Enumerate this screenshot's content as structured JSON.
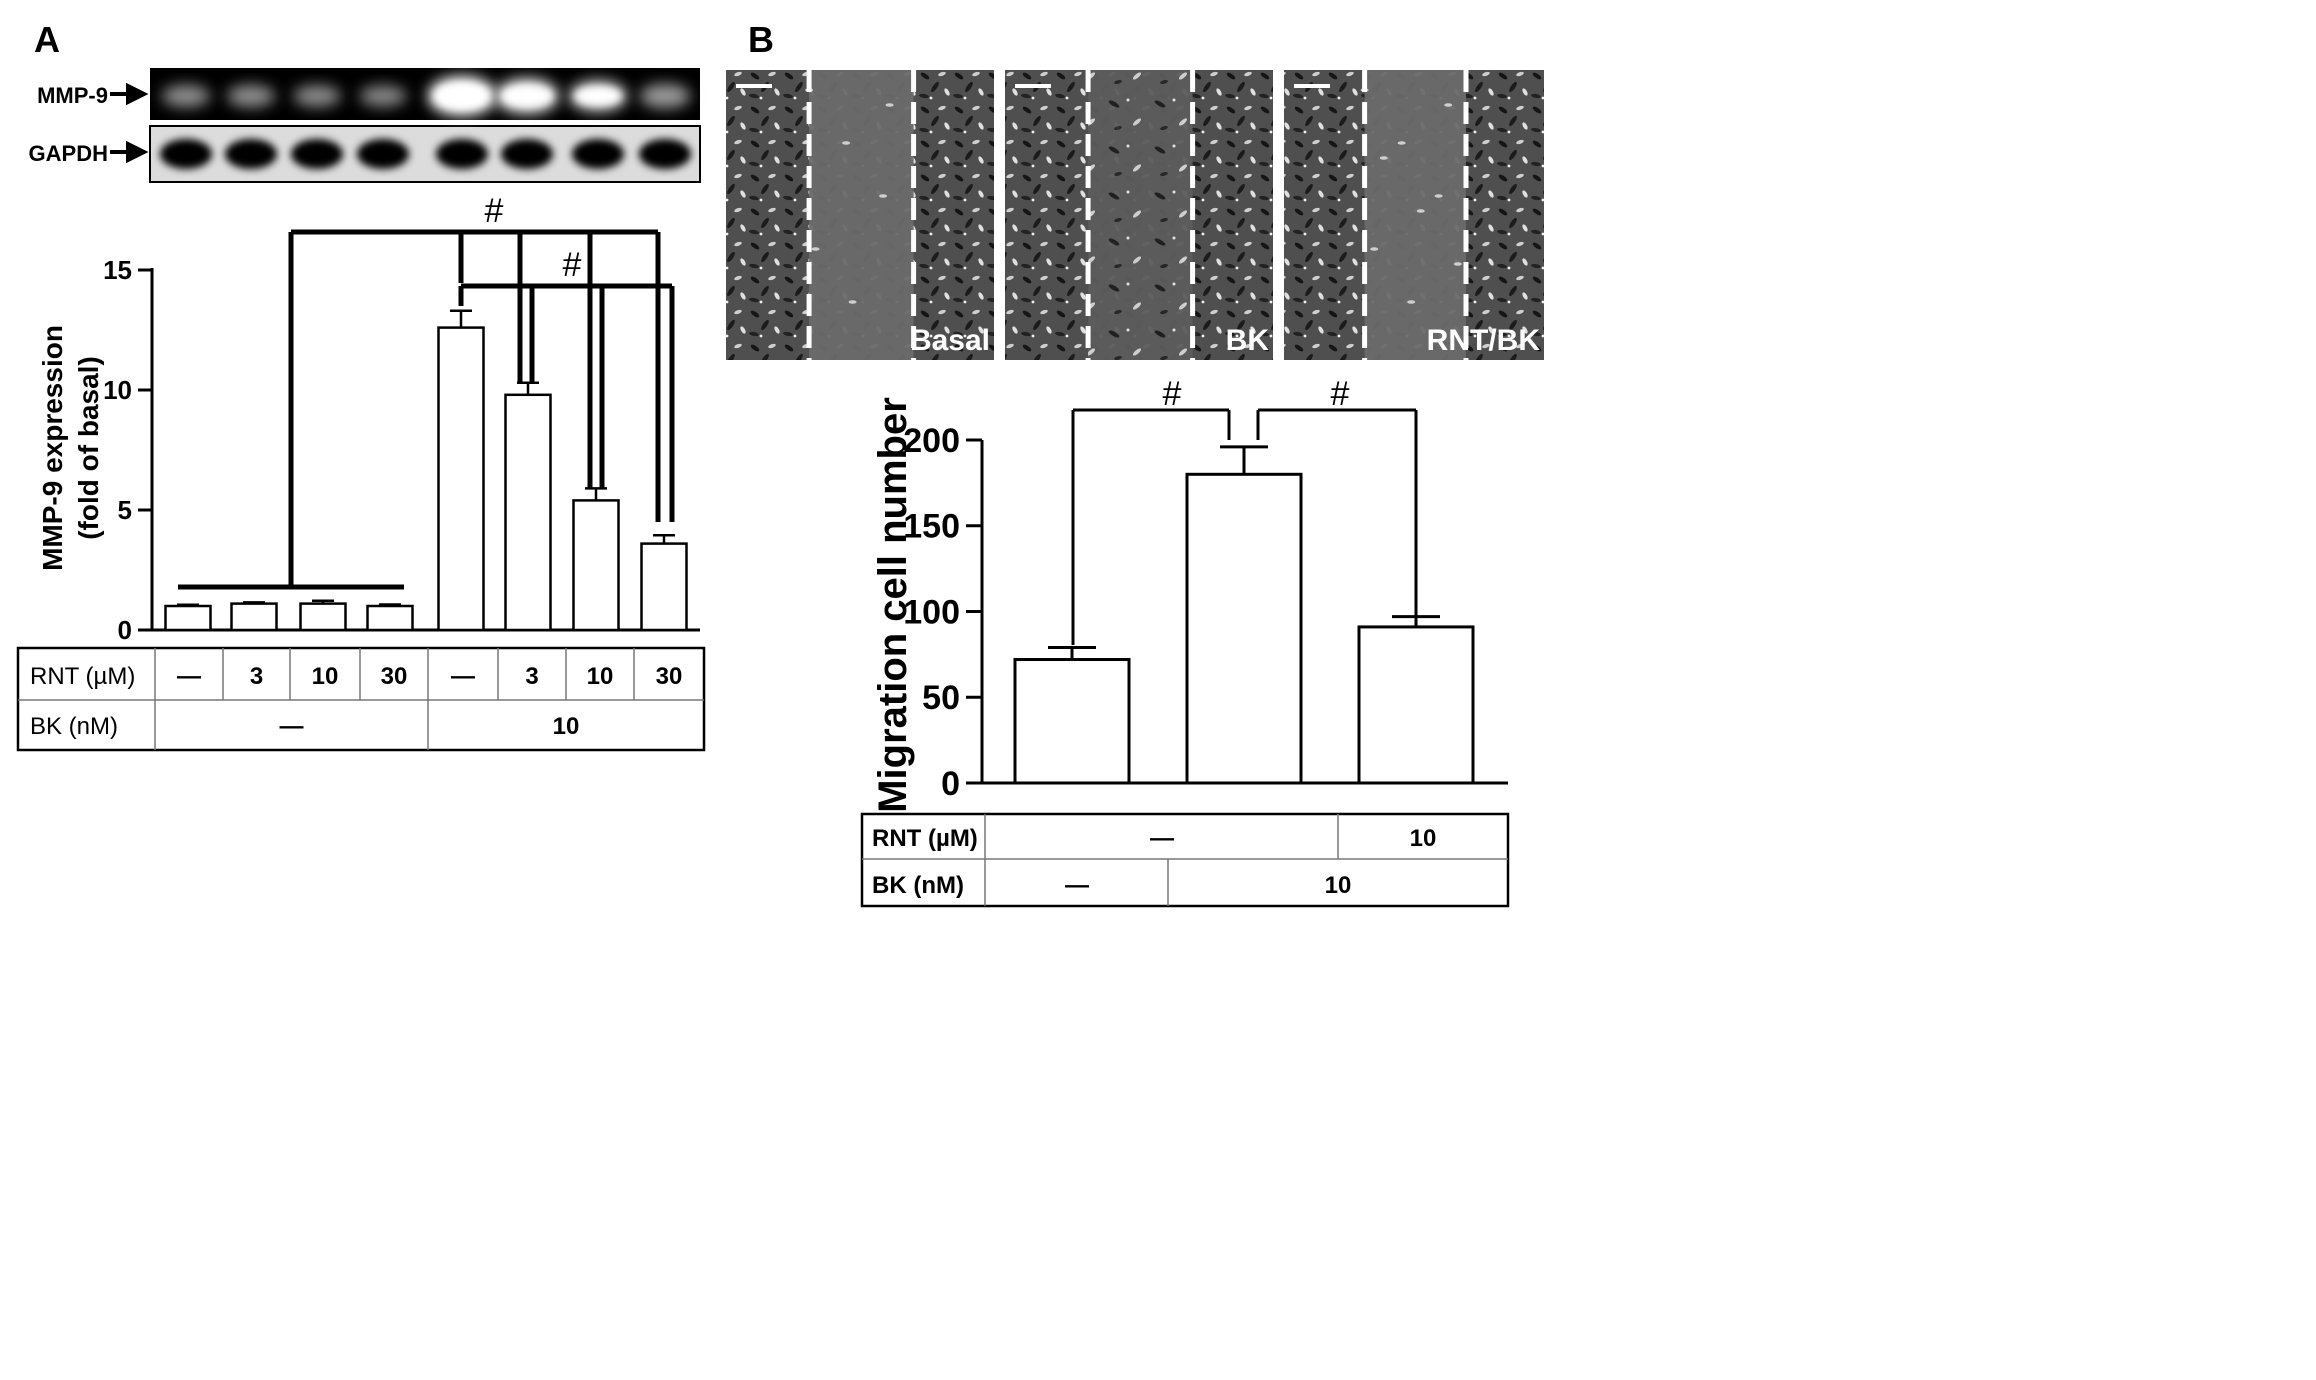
{
  "panels": {
    "A": {
      "letter": "A",
      "blot": {
        "rows": [
          {
            "label": "MMP-9",
            "intensities": [
              0.38,
              0.38,
              0.36,
              0.34,
              1.0,
              0.85,
              0.7,
              0.45
            ]
          },
          {
            "label": "GAPDH",
            "intensities": [
              1,
              1,
              1,
              1,
              1,
              1,
              1,
              1
            ]
          }
        ]
      },
      "sig_marks": [
        "#",
        "#"
      ],
      "conditions": {
        "row1_label": "RNT (µM)",
        "row1_values": [
          "—",
          "3",
          "10",
          "30",
          "—",
          "3",
          "10",
          "30"
        ],
        "row2_label": "BK (nM)",
        "row2_groups": [
          {
            "text": "—",
            "span": 4
          },
          {
            "text": "10",
            "span": 4
          }
        ]
      }
    },
    "B": {
      "letter": "B",
      "images": [
        {
          "label": "Basal",
          "gap_level": 0.1
        },
        {
          "label": "BK",
          "gap_level": 0.75
        },
        {
          "label": "RNT/BK",
          "gap_level": 0.25
        }
      ],
      "sig_marks": [
        "#",
        "#"
      ],
      "conditions": {
        "row1_label": "RNT (µM)",
        "row1_groups": [
          {
            "text": "—",
            "span": 2
          },
          {
            "text": "10",
            "span": 1
          }
        ],
        "row2_label": "BK (nM)",
        "row2_groups": [
          {
            "text": "—",
            "span": 1
          },
          {
            "text": "10",
            "span": 2
          }
        ]
      }
    }
  },
  "chart_data": [
    {
      "type": "bar",
      "panel": "A",
      "categories": [
        "1",
        "2",
        "3",
        "4",
        "5",
        "6",
        "7",
        "8"
      ],
      "values": [
        1.0,
        1.1,
        1.1,
        1.0,
        12.6,
        9.8,
        5.4,
        3.6
      ],
      "errors": [
        0.05,
        0.05,
        0.12,
        0.06,
        0.7,
        0.5,
        0.5,
        0.35
      ],
      "ylabel": "MMP-9 expression",
      "ylabel2": "(fold of basal)",
      "ylim": [
        0,
        15
      ],
      "yticks": [
        0,
        5,
        10,
        15
      ]
    },
    {
      "type": "bar",
      "panel": "B",
      "categories": [
        "1",
        "2",
        "3"
      ],
      "values": [
        72,
        180,
        91
      ],
      "errors": [
        7,
        16,
        6
      ],
      "ylabel": "Migration cell number",
      "ylim": [
        0,
        200
      ],
      "yticks": [
        0,
        50,
        100,
        150,
        200
      ]
    }
  ]
}
